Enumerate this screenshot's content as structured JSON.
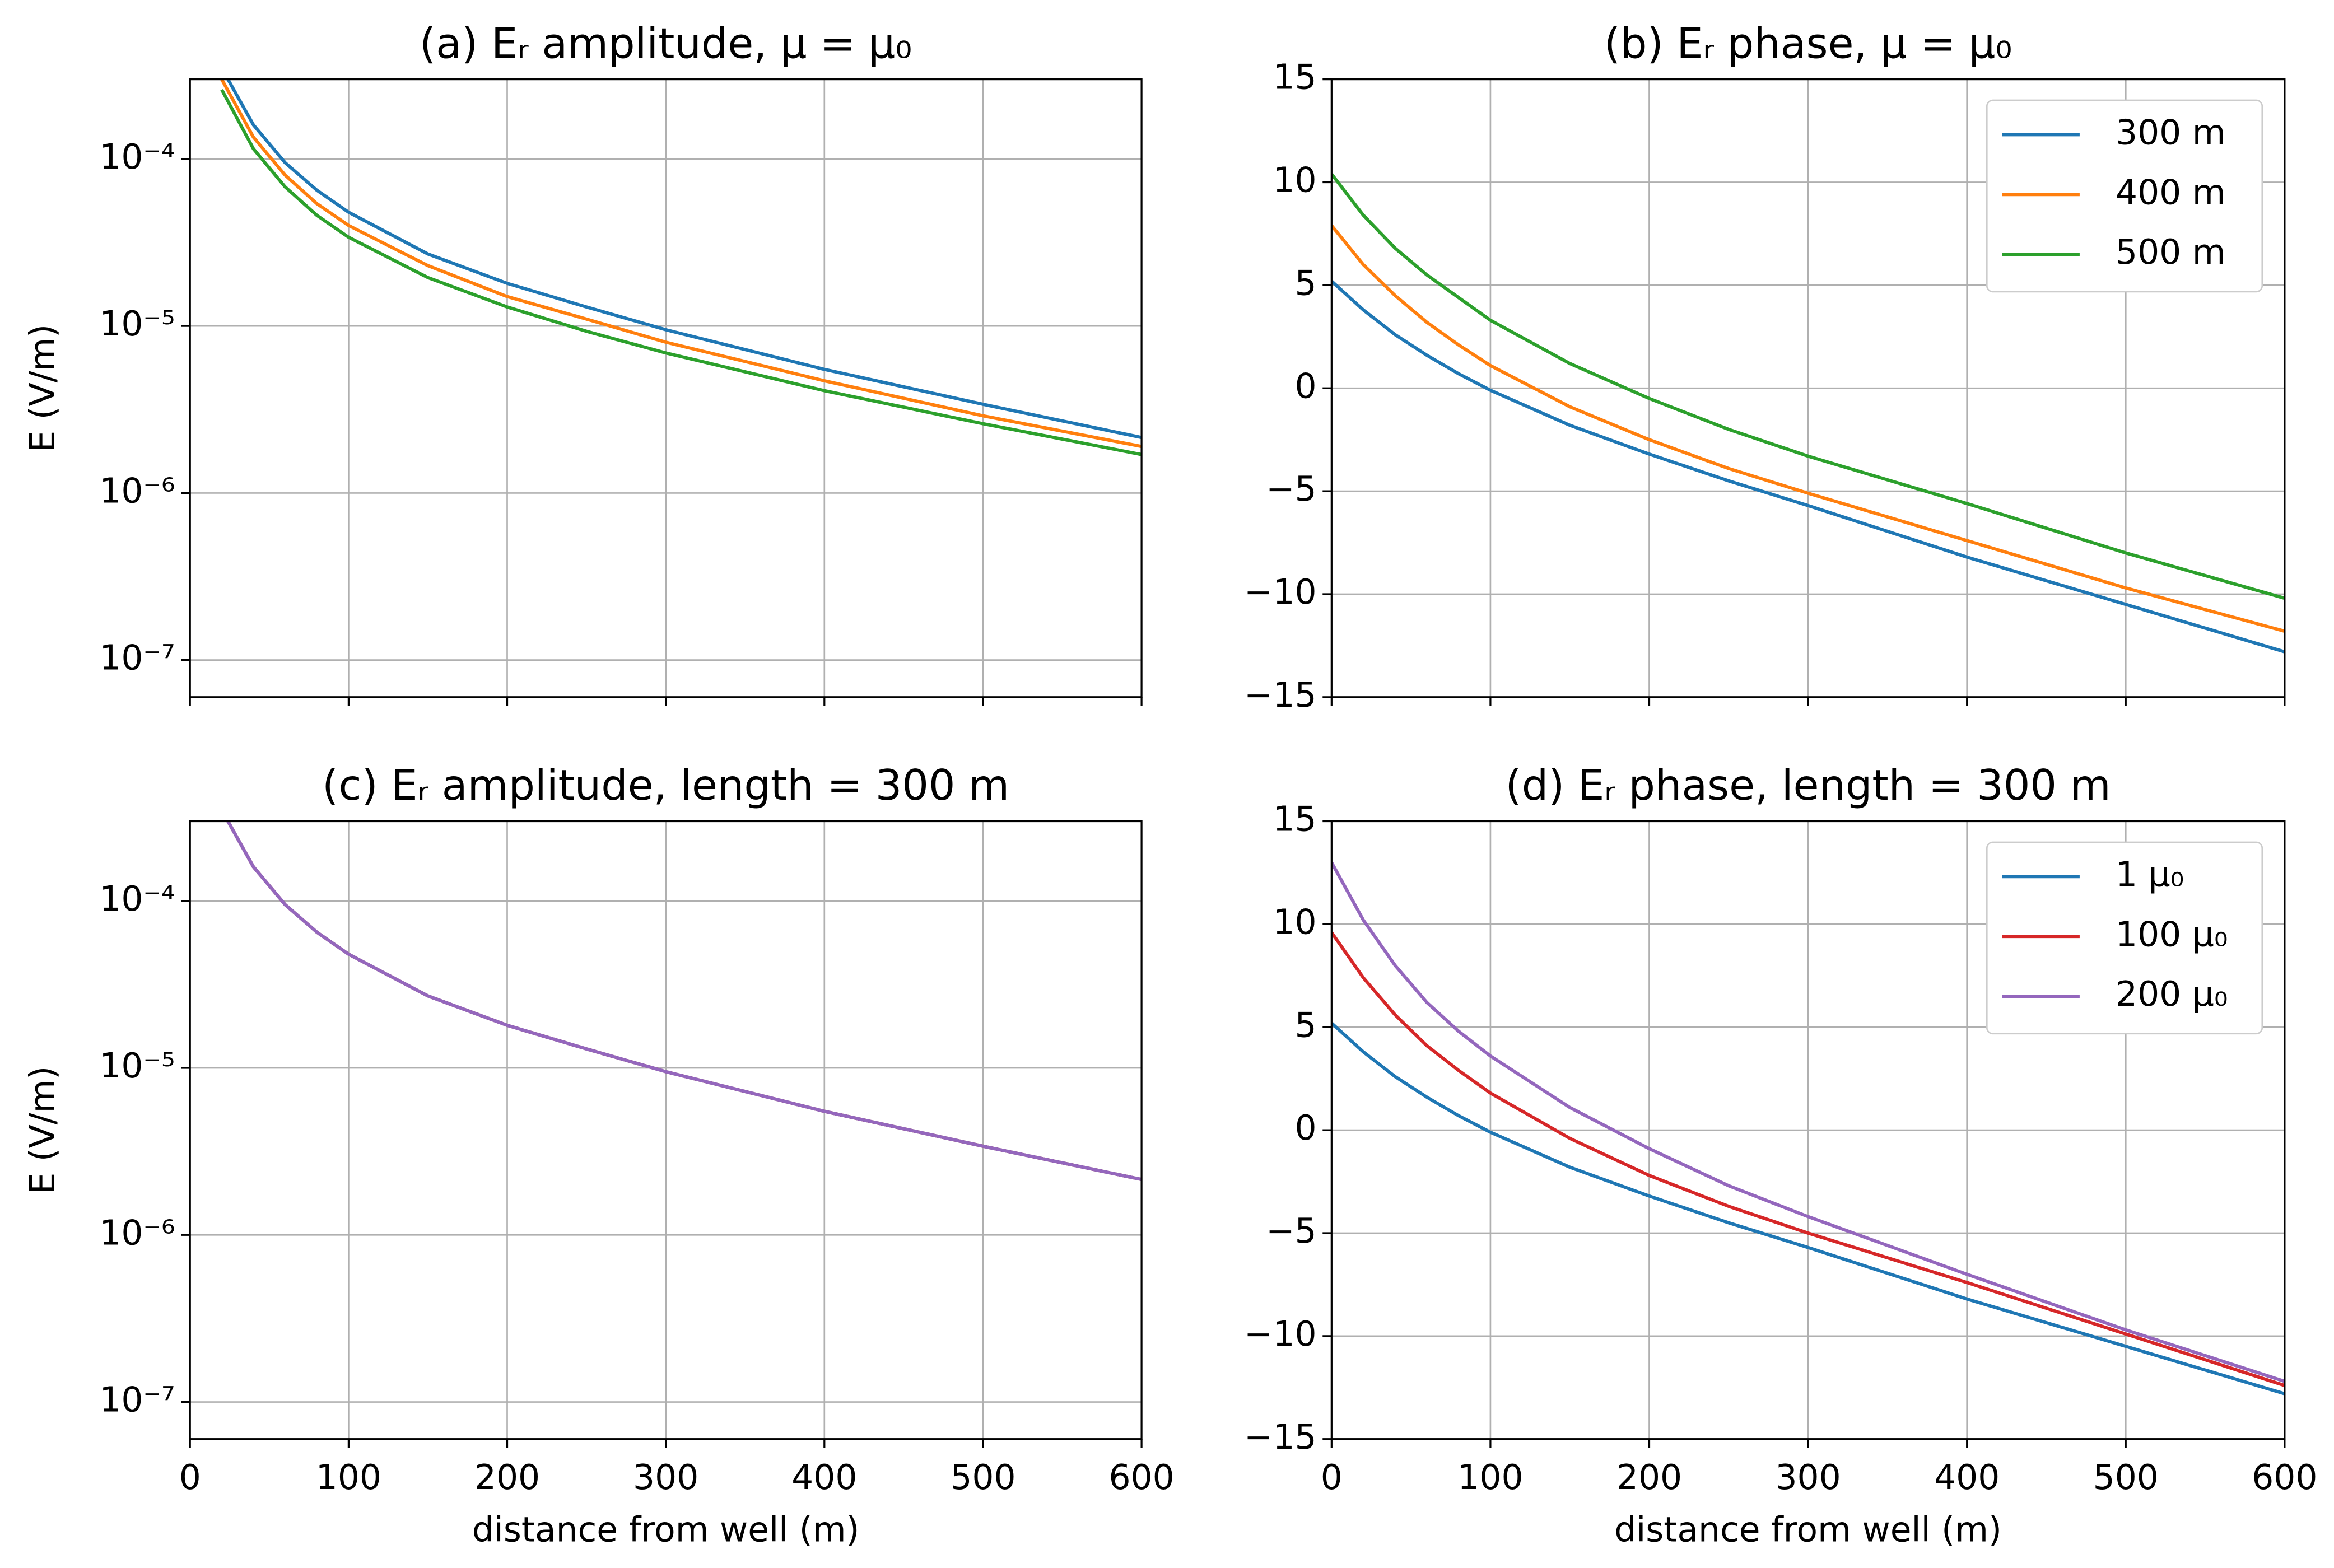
{
  "chart_data": [
    {
      "type": "line",
      "title": "(a) Eᵣ amplitude, μ = μ₀",
      "ylabel": "E (V/m)",
      "yscale": "log",
      "grid": true,
      "x": [
        20,
        40,
        60,
        80,
        100,
        150,
        200,
        250,
        300,
        400,
        500,
        600
      ],
      "series": [
        {
          "name": "300 m",
          "color": "#1f77b4",
          "values": [
            0.00035,
            0.00016,
            9.5e-05,
            6.5e-05,
            4.8e-05,
            2.7e-05,
            1.8e-05,
            1.3e-05,
            9.5e-06,
            5.5e-06,
            3.4e-06,
            2.15e-06
          ]
        },
        {
          "name": "400 m",
          "color": "#ff7f0e",
          "values": [
            0.0003,
            0.000135,
            8e-05,
            5.4e-05,
            4e-05,
            2.3e-05,
            1.5e-05,
            1.1e-05,
            8e-06,
            4.7e-06,
            2.9e-06,
            1.9e-06
          ]
        },
        {
          "name": "500 m",
          "color": "#2ca02c",
          "values": [
            0.00026,
            0.000115,
            6.8e-05,
            4.6e-05,
            3.4e-05,
            1.95e-05,
            1.3e-05,
            9.3e-06,
            6.9e-06,
            4.1e-06,
            2.6e-06,
            1.7e-06
          ]
        }
      ],
      "xlim": [
        0,
        600
      ],
      "xticks": [
        0,
        100,
        200,
        300,
        400,
        500,
        600
      ],
      "ylim": [
        6e-08,
        0.0003
      ],
      "yticks": [
        {
          "value": 1e-07,
          "label": "10⁻⁷"
        },
        {
          "value": 1e-06,
          "label": "10⁻⁶"
        },
        {
          "value": 1e-05,
          "label": "10⁻⁵"
        },
        {
          "value": 0.0001,
          "label": "10⁻⁴"
        }
      ]
    },
    {
      "type": "line",
      "title": "(b) Eᵣ phase, μ = μ₀",
      "grid": true,
      "legend": "upper right",
      "x": [
        0,
        20,
        40,
        60,
        80,
        100,
        150,
        200,
        250,
        300,
        400,
        500,
        600
      ],
      "series": [
        {
          "name": "300 m",
          "color": "#1f77b4",
          "values": [
            5.2,
            3.8,
            2.6,
            1.6,
            0.7,
            -0.1,
            -1.8,
            -3.2,
            -4.5,
            -5.7,
            -8.2,
            -10.5,
            -12.8
          ]
        },
        {
          "name": "400 m",
          "color": "#ff7f0e",
          "values": [
            7.9,
            6.0,
            4.5,
            3.2,
            2.1,
            1.1,
            -0.9,
            -2.5,
            -3.9,
            -5.1,
            -7.4,
            -9.7,
            -11.8
          ]
        },
        {
          "name": "500 m",
          "color": "#2ca02c",
          "values": [
            10.4,
            8.4,
            6.8,
            5.5,
            4.4,
            3.3,
            1.2,
            -0.5,
            -2.0,
            -3.3,
            -5.6,
            -8.0,
            -10.2
          ]
        }
      ],
      "xlim": [
        0,
        600
      ],
      "xticks": [
        0,
        100,
        200,
        300,
        400,
        500,
        600
      ],
      "ylim": [
        -15,
        15
      ],
      "yticks": [
        {
          "value": -15,
          "label": "−15"
        },
        {
          "value": -10,
          "label": "−10"
        },
        {
          "value": -5,
          "label": "−5"
        },
        0,
        5,
        10,
        15
      ]
    },
    {
      "type": "line",
      "title": "(c) Eᵣ amplitude, length = 300 m",
      "xlabel": "distance from well (m)",
      "ylabel": "E (V/m)",
      "yscale": "log",
      "grid": true,
      "x": [
        20,
        40,
        60,
        80,
        100,
        150,
        200,
        250,
        300,
        400,
        500,
        600
      ],
      "series": [
        {
          "name": "1 μ₀",
          "color": "#1f77b4",
          "values": [
            0.00035,
            0.00016,
            9.5e-05,
            6.5e-05,
            4.8e-05,
            2.7e-05,
            1.8e-05,
            1.3e-05,
            9.5e-06,
            5.5e-06,
            3.4e-06,
            2.15e-06
          ]
        },
        {
          "name": "100 μ₀",
          "color": "#d62728",
          "values": [
            0.00035,
            0.00016,
            9.5e-05,
            6.5e-05,
            4.8e-05,
            2.7e-05,
            1.8e-05,
            1.3e-05,
            9.5e-06,
            5.5e-06,
            3.4e-06,
            2.15e-06
          ]
        },
        {
          "name": "200 μ₀",
          "color": "#9467bd",
          "values": [
            0.00035,
            0.00016,
            9.5e-05,
            6.5e-05,
            4.8e-05,
            2.7e-05,
            1.8e-05,
            1.3e-05,
            9.5e-06,
            5.5e-06,
            3.4e-06,
            2.15e-06
          ]
        }
      ],
      "xlim": [
        0,
        600
      ],
      "xticks": [
        0,
        100,
        200,
        300,
        400,
        500,
        600
      ],
      "ylim": [
        6e-08,
        0.0003
      ],
      "yticks": [
        {
          "value": 1e-07,
          "label": "10⁻⁷"
        },
        {
          "value": 1e-06,
          "label": "10⁻⁶"
        },
        {
          "value": 1e-05,
          "label": "10⁻⁵"
        },
        {
          "value": 0.0001,
          "label": "10⁻⁴"
        }
      ]
    },
    {
      "type": "line",
      "title": "(d) Eᵣ phase, length = 300 m",
      "xlabel": "distance from well (m)",
      "grid": true,
      "legend": "upper right",
      "x": [
        0,
        20,
        40,
        60,
        80,
        100,
        150,
        200,
        250,
        300,
        400,
        500,
        600
      ],
      "series": [
        {
          "name": "1 μ₀",
          "color": "#1f77b4",
          "values": [
            5.2,
            3.8,
            2.6,
            1.6,
            0.7,
            -0.1,
            -1.8,
            -3.2,
            -4.5,
            -5.7,
            -8.2,
            -10.5,
            -12.8
          ]
        },
        {
          "name": "100 μ₀",
          "color": "#d62728",
          "values": [
            9.6,
            7.4,
            5.6,
            4.1,
            2.9,
            1.8,
            -0.4,
            -2.2,
            -3.7,
            -5.0,
            -7.4,
            -9.9,
            -12.4
          ]
        },
        {
          "name": "200 μ₀",
          "color": "#9467bd",
          "values": [
            13.0,
            10.2,
            8.0,
            6.2,
            4.8,
            3.6,
            1.1,
            -0.9,
            -2.7,
            -4.2,
            -7.0,
            -9.7,
            -12.2
          ]
        }
      ],
      "xlim": [
        0,
        600
      ],
      "xticks": [
        0,
        100,
        200,
        300,
        400,
        500,
        600
      ],
      "ylim": [
        -15,
        15
      ],
      "yticks": [
        {
          "value": -15,
          "label": "−15"
        },
        {
          "value": -10,
          "label": "−10"
        },
        {
          "value": -5,
          "label": "−5"
        },
        0,
        5,
        10,
        15
      ]
    }
  ]
}
